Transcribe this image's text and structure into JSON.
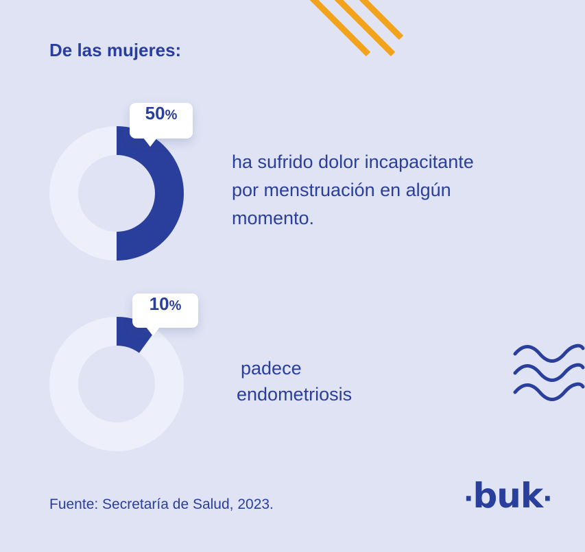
{
  "heading": "De las mujeres:",
  "chart_data": [
    {
      "type": "pie",
      "values": [
        50,
        50
      ],
      "labels": [
        "",
        ""
      ],
      "highlight_value": "50",
      "unit": "%",
      "description_lines": [
        "ha sufrido dolor incapacitante",
        "por menstruación en algún",
        "momento."
      ]
    },
    {
      "type": "pie",
      "values": [
        10,
        90
      ],
      "labels": [
        "",
        ""
      ],
      "highlight_value": "10",
      "unit": "%",
      "description_lines": [
        "padece",
        "endometriosis"
      ]
    }
  ],
  "colors": {
    "background": "#dfe3f4",
    "accent": "#2a3f9c",
    "ring": "#edf0fa",
    "stripe": "#f2a31b"
  },
  "source": "Fuente: Secretaría de Salud, 2023.",
  "logo": {
    "text": "buk",
    "dot": "·"
  }
}
